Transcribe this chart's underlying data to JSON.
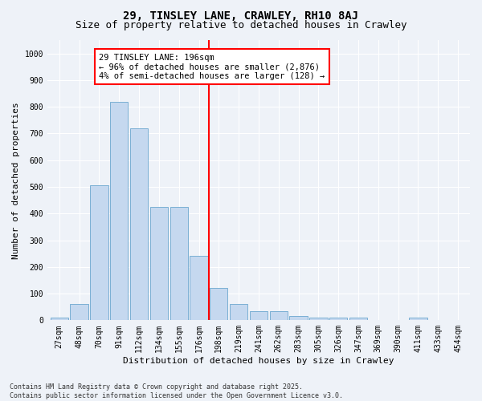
{
  "title": "29, TINSLEY LANE, CRAWLEY, RH10 8AJ",
  "subtitle": "Size of property relative to detached houses in Crawley",
  "xlabel": "Distribution of detached houses by size in Crawley",
  "ylabel": "Number of detached properties",
  "bins": [
    "27sqm",
    "48sqm",
    "70sqm",
    "91sqm",
    "112sqm",
    "134sqm",
    "155sqm",
    "176sqm",
    "198sqm",
    "219sqm",
    "241sqm",
    "262sqm",
    "283sqm",
    "305sqm",
    "326sqm",
    "347sqm",
    "369sqm",
    "390sqm",
    "411sqm",
    "433sqm",
    "454sqm"
  ],
  "values": [
    10,
    60,
    505,
    820,
    720,
    425,
    425,
    240,
    120,
    60,
    35,
    35,
    15,
    10,
    10,
    10,
    0,
    0,
    10,
    0,
    0
  ],
  "bar_color": "#c5d8ef",
  "bar_edge_color": "#7aafd4",
  "vline_x_index": 8,
  "vline_color": "red",
  "annotation_text": "29 TINSLEY LANE: 196sqm\n← 96% of detached houses are smaller (2,876)\n4% of semi-detached houses are larger (128) →",
  "annotation_box_color": "white",
  "annotation_box_edge_color": "red",
  "ylim": [
    0,
    1050
  ],
  "yticks": [
    0,
    100,
    200,
    300,
    400,
    500,
    600,
    700,
    800,
    900,
    1000
  ],
  "footer": "Contains HM Land Registry data © Crown copyright and database right 2025.\nContains public sector information licensed under the Open Government Licence v3.0.",
  "bg_color": "#eef2f8",
  "title_fontsize": 10,
  "subtitle_fontsize": 9,
  "tick_fontsize": 7,
  "label_fontsize": 8,
  "annotation_fontsize": 7.5,
  "footer_fontsize": 6
}
